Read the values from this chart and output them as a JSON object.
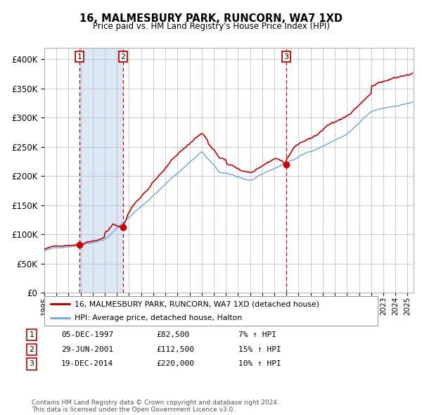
{
  "title": "16, MALMESBURY PARK, RUNCORN, WA7 1XD",
  "subtitle": "Price paid vs. HM Land Registry's House Price Index (HPI)",
  "legend_line1": "16, MALMESBURY PARK, RUNCORN, WA7 1XD (detached house)",
  "legend_line2": "HPI: Average price, detached house, Halton",
  "sale1_date": "05-DEC-1997",
  "sale1_price": 82500,
  "sale1_hpi": "7% ↑ HPI",
  "sale1_year": 1997.92,
  "sale2_date": "29-JUN-2001",
  "sale2_price": 112500,
  "sale2_hpi": "15% ↑ HPI",
  "sale2_year": 2001.49,
  "sale3_date": "19-DEC-2014",
  "sale3_price": 220000,
  "sale3_hpi": "10% ↑ HPI",
  "sale3_year": 2014.96,
  "copyright_text": "Contains HM Land Registry data © Crown copyright and database right 2024.\nThis data is licensed under the Open Government Licence v3.0.",
  "red_color": "#cc0000",
  "blue_color": "#7aabdb",
  "bg_color": "#dce9f5",
  "plot_bg": "#ffffff",
  "grid_color": "#b0b8cc",
  "ylim": [
    0,
    420000
  ],
  "xlim_start": 1995.0,
  "xlim_end": 2025.5
}
